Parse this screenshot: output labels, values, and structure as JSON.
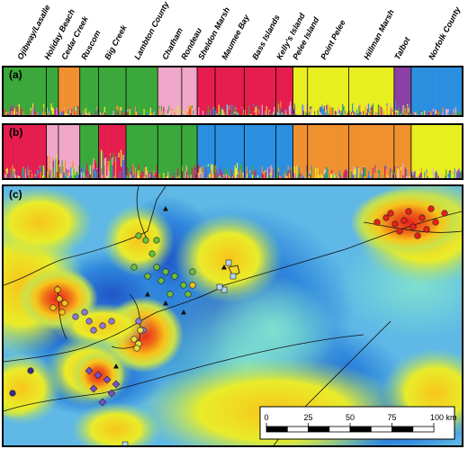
{
  "chart_data": [
    {
      "type": "bar",
      "panel": "(a)",
      "populations": [
        "Ojibway/Lasalle",
        "Holiday Beach",
        "Cedar Creek",
        "Ruscom",
        "Big Creek",
        "Lambton County",
        "Chatham",
        "Rondeau",
        "Sheldon Marsh",
        "Maumee Bay",
        "Bass Islands",
        "Kelly's Island",
        "Pelee Island",
        "Point Pelee",
        "Hillman Marsh",
        "Talbot",
        "Norfolk County"
      ],
      "cluster_colors": [
        "#3aa83a",
        "#f0902e",
        "#e8ef1f",
        "#e51d4e",
        "#f0a6c8",
        "#2b8fe0",
        "#8b3fa6"
      ],
      "assignment": [
        {
          "population": "Ojibway/Lasalle",
          "dominant": 0,
          "share": 0.9
        },
        {
          "population": "Holiday Beach",
          "dominant": 0,
          "share": 0.85
        },
        {
          "population": "Cedar Creek",
          "dominant": 1,
          "share": 0.95
        },
        {
          "population": "Ruscom",
          "dominant": 0,
          "share": 0.9
        },
        {
          "population": "Big Creek",
          "dominant": 0,
          "share": 0.95
        },
        {
          "population": "Lambton County",
          "dominant": 0,
          "share": 0.95
        },
        {
          "population": "Chatham",
          "dominant": 4,
          "share": 0.95
        },
        {
          "population": "Rondeau",
          "dominant": 4,
          "share": 0.9
        },
        {
          "population": "Sheldon Marsh",
          "dominant": 3,
          "share": 0.95
        },
        {
          "population": "Maumee Bay",
          "dominant": 3,
          "share": 0.9
        },
        {
          "population": "Bass Islands",
          "dominant": 3,
          "share": 0.9
        },
        {
          "population": "Kelly's Island",
          "dominant": 3,
          "share": 0.85
        },
        {
          "population": "Pelee Island",
          "dominant": 2,
          "share": 0.9
        },
        {
          "population": "Point Pelee",
          "dominant": 2,
          "share": 0.9
        },
        {
          "population": "Hillman Marsh",
          "dominant": 2,
          "share": 0.9
        },
        {
          "population": "Talbot",
          "dominant": 6,
          "share": 0.85
        },
        {
          "population": "Norfolk County",
          "dominant": 5,
          "share": 0.98
        }
      ]
    },
    {
      "type": "bar",
      "panel": "(b)",
      "assignment": [
        {
          "population": "Ojibway/Lasalle",
          "dominant": 3,
          "share": 0.9
        },
        {
          "population": "Holiday Beach",
          "dominant": 4,
          "share": 0.7
        },
        {
          "population": "Cedar Creek",
          "dominant": 4,
          "share": 0.8
        },
        {
          "population": "Ruscom",
          "dominant": 0,
          "share": 0.75
        },
        {
          "population": "Big Creek",
          "dominant": 3,
          "share": 0.6
        },
        {
          "population": "Lambton County",
          "dominant": 0,
          "share": 0.85
        },
        {
          "population": "Chatham",
          "dominant": 0,
          "share": 0.95
        },
        {
          "population": "Rondeau",
          "dominant": 0,
          "share": 0.9
        },
        {
          "population": "Sheldon Marsh",
          "dominant": 5,
          "share": 0.85
        },
        {
          "population": "Maumee Bay",
          "dominant": 5,
          "share": 0.85
        },
        {
          "population": "Bass Islands",
          "dominant": 5,
          "share": 0.9
        },
        {
          "population": "Kelly's Island",
          "dominant": 5,
          "share": 0.85
        },
        {
          "population": "Pelee Island",
          "dominant": 1,
          "share": 0.85
        },
        {
          "population": "Point Pelee",
          "dominant": 1,
          "share": 0.9
        },
        {
          "population": "Hillman Marsh",
          "dominant": 1,
          "share": 0.9
        },
        {
          "population": "Talbot",
          "dominant": 1,
          "share": 0.85
        },
        {
          "population": "Norfolk County",
          "dominant": 2,
          "share": 0.95
        }
      ]
    },
    {
      "type": "heatmap",
      "panel": "(c)",
      "scale_bar": {
        "ticks": [
          "0",
          "25",
          "50",
          "75",
          "100 km"
        ]
      }
    }
  ]
}
